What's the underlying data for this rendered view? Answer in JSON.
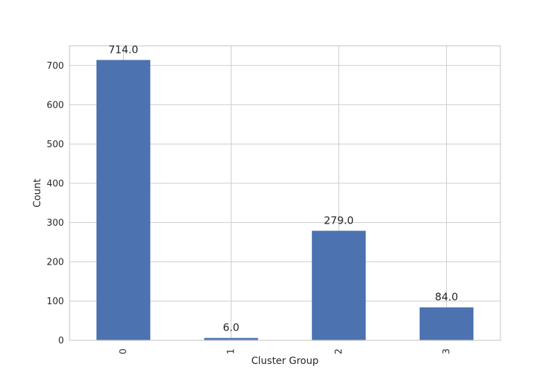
{
  "chart_data": {
    "type": "bar",
    "title": "",
    "xlabel": "Cluster Group",
    "ylabel": "Count",
    "categories": [
      "0",
      "1",
      "2",
      "3"
    ],
    "values": [
      714,
      6,
      279,
      84
    ],
    "data_labels": [
      "714.0",
      "6.0",
      "279.0",
      "84.0"
    ],
    "ylim": [
      0,
      750
    ],
    "yticks": [
      0,
      100,
      200,
      300,
      400,
      500,
      600,
      700
    ],
    "ytick_labels": [
      "0",
      "100",
      "200",
      "300",
      "400",
      "500",
      "600",
      "700"
    ],
    "xtick_rotation": "vertical",
    "grid": true,
    "legend": "none",
    "colors": {
      "bar": "#4c72b0",
      "grid": "#cccccc",
      "frame": "#cccccc",
      "background": "#ffffff",
      "text": "#262626"
    }
  }
}
